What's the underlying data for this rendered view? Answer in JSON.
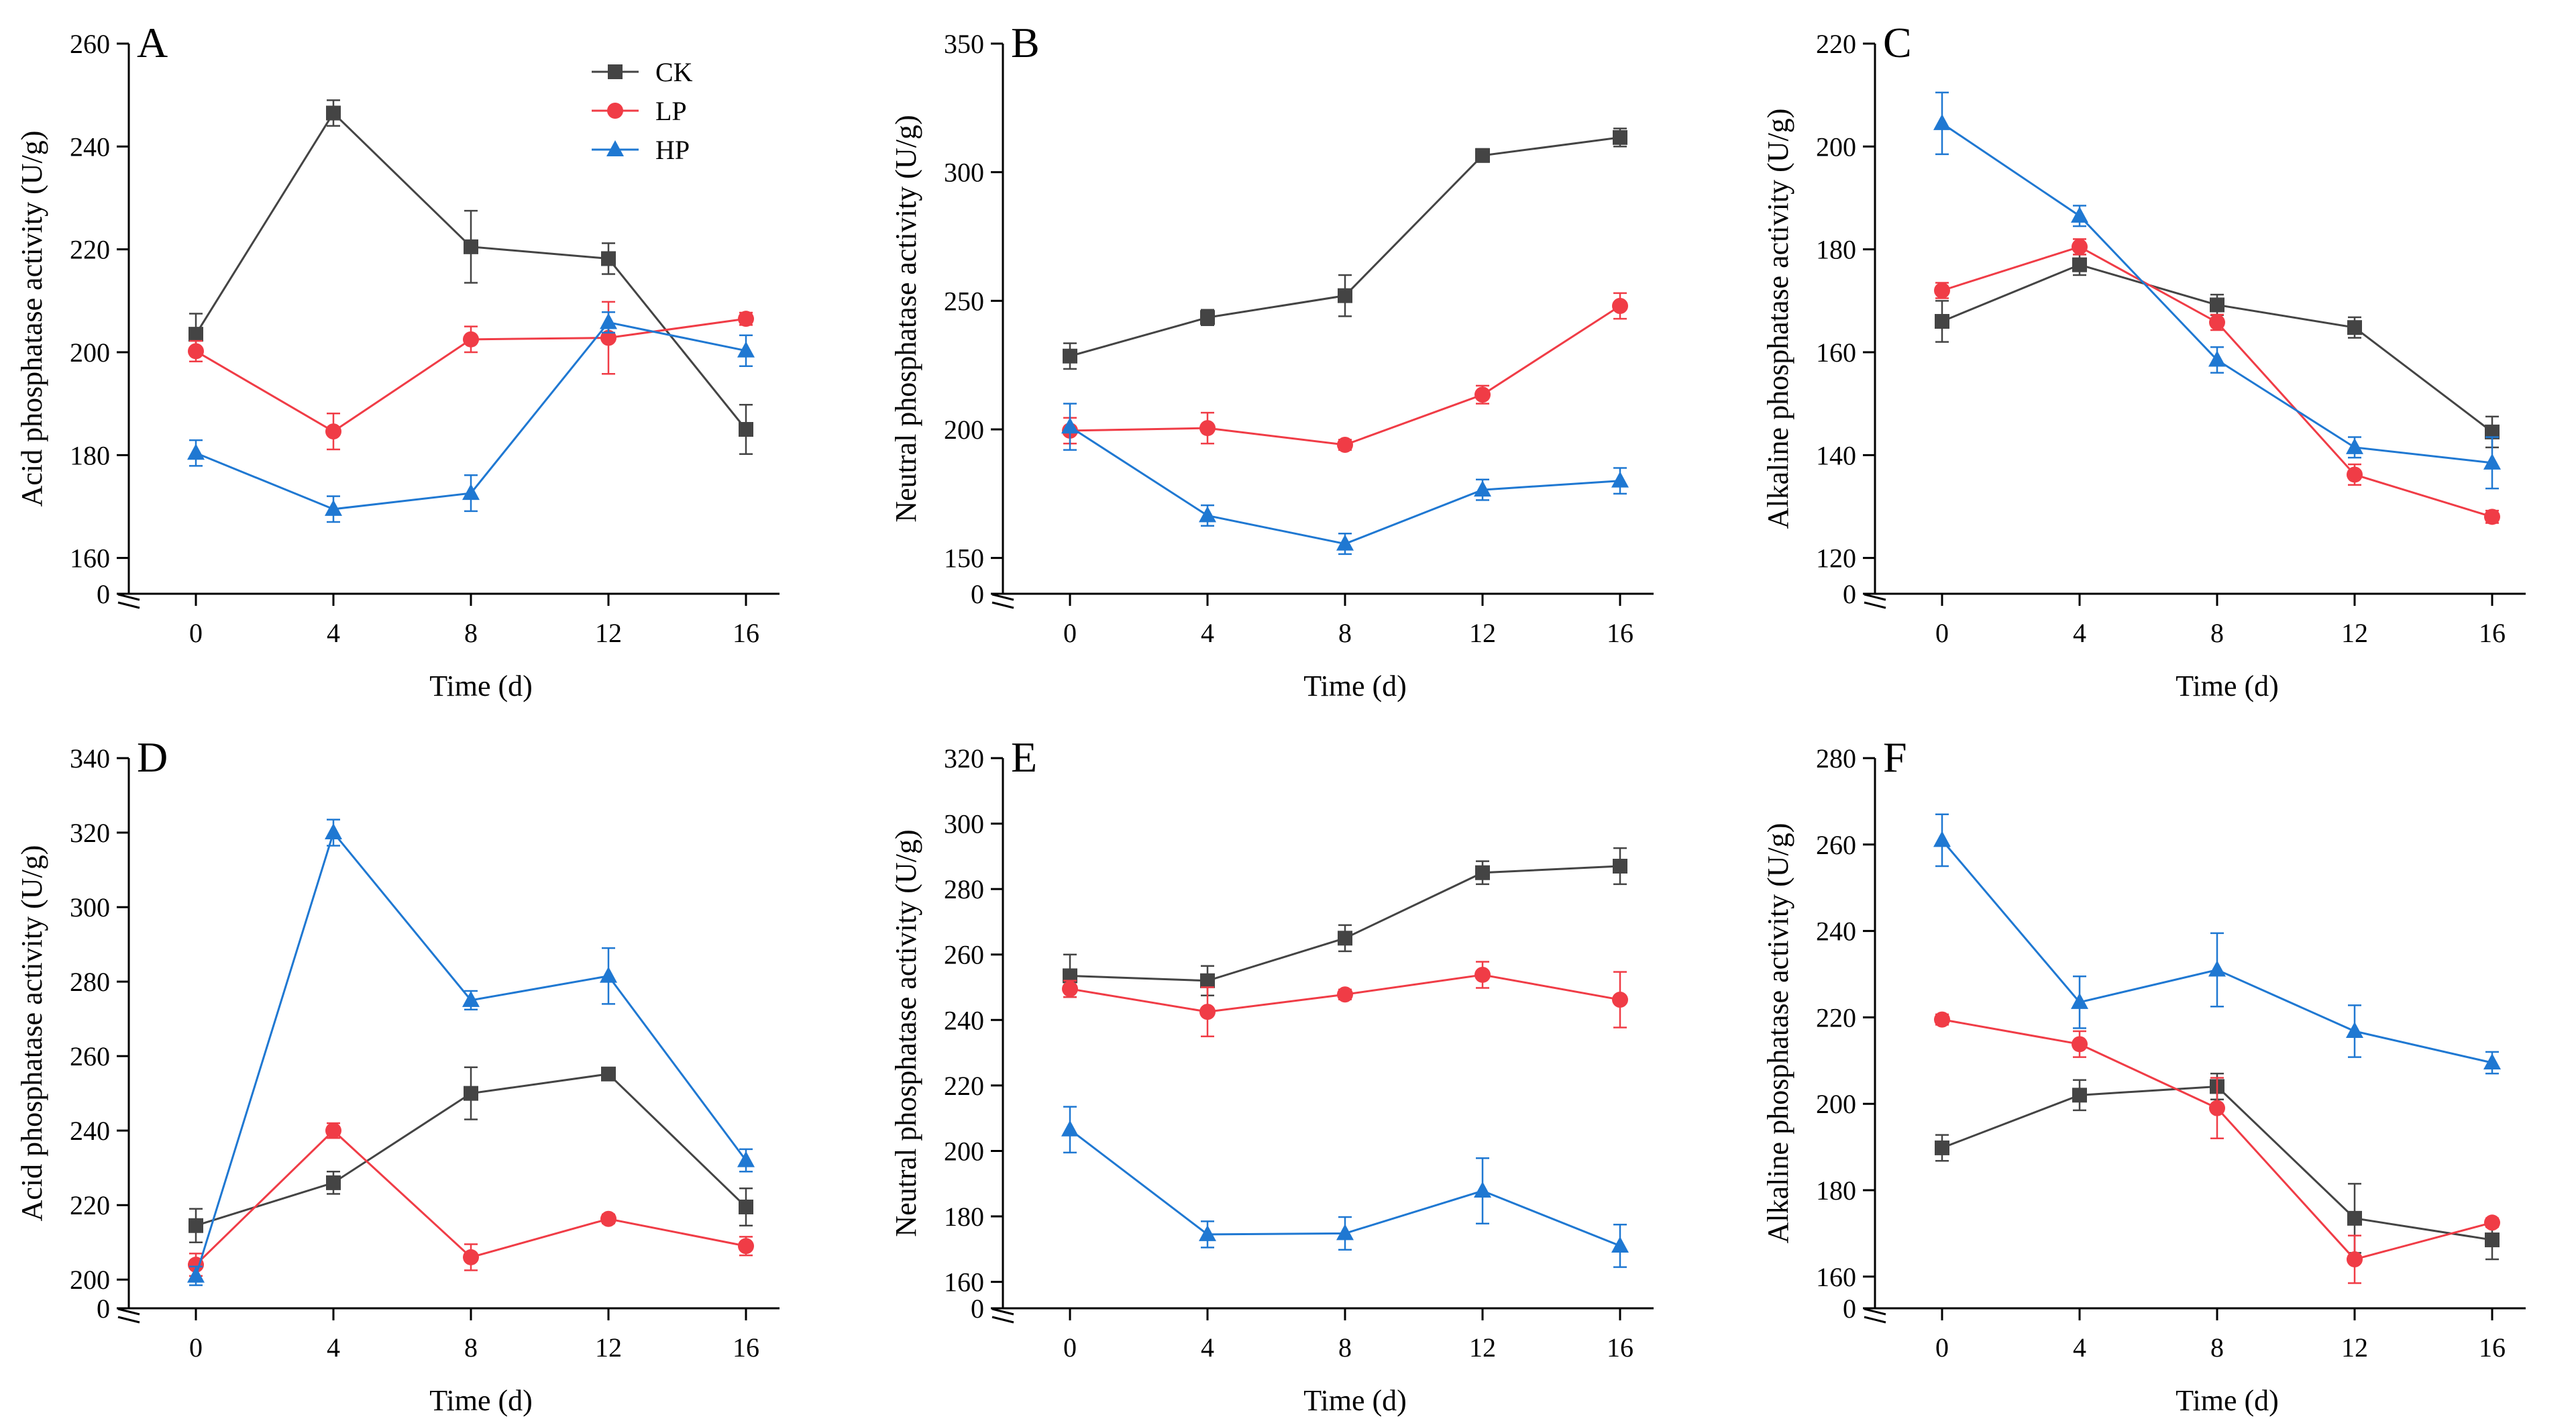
{
  "colors": {
    "CK": "#444444",
    "LP": "#f03c46",
    "HP": "#1f78d2",
    "axis": "#000000"
  },
  "legend": [
    {
      "key": "CK",
      "label": "CK",
      "marker": "square"
    },
    {
      "key": "LP",
      "label": "LP",
      "marker": "circle"
    },
    {
      "key": "HP",
      "label": "HP",
      "marker": "triangle"
    }
  ],
  "chart_data": [
    {
      "type": "line",
      "panel": "A",
      "xlabel": "Time (d)",
      "ylabel": "Acid phosphatase activity (U/g)",
      "x": [
        0,
        4,
        8,
        12,
        16
      ],
      "ylim": [
        155,
        260
      ],
      "yticks": [
        160,
        180,
        200,
        220,
        240,
        260
      ],
      "axis_break": true,
      "break_label": "0",
      "series": [
        {
          "name": "CK",
          "values": [
            203.5,
            246.5,
            220.5,
            218.2,
            185.0
          ],
          "errors": [
            4.0,
            2.5,
            7.0,
            3.0,
            4.8
          ]
        },
        {
          "name": "LP",
          "values": [
            200.2,
            184.6,
            202.5,
            202.8,
            206.5
          ],
          "errors": [
            2.0,
            3.5,
            2.5,
            7.0,
            1.2
          ]
        },
        {
          "name": "HP",
          "values": [
            180.4,
            169.5,
            172.6,
            205.8,
            200.3
          ],
          "errors": [
            2.5,
            2.5,
            3.5,
            2.0,
            3.0
          ]
        }
      ]
    },
    {
      "type": "line",
      "panel": "B",
      "xlabel": "Time (d)",
      "ylabel": "Neutral phosphatase activity (U/g)",
      "x": [
        0,
        4,
        8,
        12,
        16
      ],
      "ylim": [
        140,
        350
      ],
      "yticks": [
        150,
        200,
        250,
        300,
        350
      ],
      "axis_break": true,
      "break_label": "0",
      "series": [
        {
          "name": "CK",
          "values": [
            228.5,
            243.5,
            252.0,
            306.5,
            313.5
          ],
          "errors": [
            5.0,
            3.0,
            8.0,
            2.5,
            3.5
          ]
        },
        {
          "name": "LP",
          "values": [
            199.5,
            200.5,
            194.0,
            213.5,
            248.0
          ],
          "errors": [
            5.0,
            6.0,
            2.0,
            3.5,
            5.0
          ]
        },
        {
          "name": "HP",
          "values": [
            201.0,
            166.5,
            155.5,
            176.5,
            180.0
          ],
          "errors": [
            9.0,
            4.0,
            4.0,
            4.0,
            5.0
          ]
        }
      ]
    },
    {
      "type": "line",
      "panel": "C",
      "xlabel": "Time (d)",
      "ylabel": "Alkaline phosphatase activity (U/g)",
      "x": [
        0,
        4,
        8,
        12,
        16
      ],
      "ylim": [
        115,
        220
      ],
      "yticks": [
        120,
        140,
        160,
        180,
        200,
        220
      ],
      "axis_break": true,
      "break_label": "0",
      "series": [
        {
          "name": "CK",
          "values": [
            166.0,
            177.0,
            169.2,
            164.8,
            144.5
          ],
          "errors": [
            4.0,
            2.0,
            2.0,
            2.0,
            3.0
          ]
        },
        {
          "name": "LP",
          "values": [
            172.0,
            180.5,
            165.8,
            136.2,
            128.0
          ],
          "errors": [
            1.5,
            1.5,
            1.5,
            2.0,
            1.2
          ]
        },
        {
          "name": "HP",
          "values": [
            204.5,
            186.5,
            158.5,
            141.5,
            138.5
          ],
          "errors": [
            6.0,
            2.0,
            2.5,
            2.0,
            5.0
          ]
        }
      ]
    },
    {
      "type": "line",
      "panel": "D",
      "xlabel": "Time (d)",
      "ylabel": "Acid phosphatase activity (U/g)",
      "x": [
        0,
        4,
        8,
        12,
        16
      ],
      "ylim": [
        195,
        340
      ],
      "yticks": [
        200,
        220,
        240,
        260,
        280,
        300,
        320,
        340
      ],
      "axis_break": true,
      "break_label": "0",
      "series": [
        {
          "name": "CK",
          "values": [
            214.5,
            226.0,
            250.0,
            255.2,
            219.5
          ],
          "errors": [
            4.5,
            3.0,
            7.0,
            1.5,
            5.0
          ]
        },
        {
          "name": "LP",
          "values": [
            204.0,
            240.0,
            206.0,
            216.3,
            209.0
          ],
          "errors": [
            3.0,
            2.0,
            3.5,
            1.2,
            2.5
          ]
        },
        {
          "name": "HP",
          "values": [
            201.0,
            320.0,
            275.0,
            281.5,
            232.0
          ],
          "errors": [
            2.5,
            3.5,
            2.5,
            7.5,
            3.0
          ]
        }
      ]
    },
    {
      "type": "line",
      "panel": "E",
      "xlabel": "Time (d)",
      "ylabel": "Neutral phosphatase activity (U/g)",
      "x": [
        0,
        4,
        8,
        12,
        16
      ],
      "ylim": [
        155,
        320
      ],
      "yticks": [
        160,
        180,
        200,
        220,
        240,
        260,
        280,
        300,
        320
      ],
      "axis_break": true,
      "break_label": "0",
      "series": [
        {
          "name": "CK",
          "values": [
            253.5,
            252.0,
            265.0,
            285.0,
            287.0
          ],
          "errors": [
            6.5,
            4.5,
            4.0,
            3.5,
            5.5
          ]
        },
        {
          "name": "LP",
          "values": [
            249.5,
            242.5,
            247.8,
            253.8,
            246.2
          ],
          "errors": [
            2.5,
            7.5,
            1.5,
            4.0,
            8.5
          ]
        },
        {
          "name": "HP",
          "values": [
            206.5,
            174.5,
            174.8,
            187.8,
            171.0
          ],
          "errors": [
            7.0,
            4.0,
            5.0,
            10.0,
            6.5
          ]
        }
      ]
    },
    {
      "type": "line",
      "panel": "F",
      "xlabel": "Time (d)",
      "ylabel": "Alkaline phosphatase activity (U/g)",
      "x": [
        0,
        4,
        8,
        12,
        16
      ],
      "ylim": [
        155,
        280
      ],
      "yticks": [
        160,
        180,
        200,
        220,
        240,
        260,
        280
      ],
      "axis_break": true,
      "break_label": "0",
      "series": [
        {
          "name": "CK",
          "values": [
            189.8,
            202.0,
            204.0,
            173.5,
            168.5
          ],
          "errors": [
            3.0,
            3.5,
            3.0,
            8.0,
            4.5
          ]
        },
        {
          "name": "LP",
          "values": [
            219.5,
            213.8,
            199.0,
            164.0,
            172.5
          ],
          "errors": [
            1.2,
            3.0,
            7.0,
            5.5,
            1.0
          ]
        },
        {
          "name": "HP",
          "values": [
            261.0,
            223.5,
            231.0,
            216.8,
            209.5
          ],
          "errors": [
            6.0,
            6.0,
            8.5,
            6.0,
            2.5
          ]
        }
      ]
    }
  ]
}
